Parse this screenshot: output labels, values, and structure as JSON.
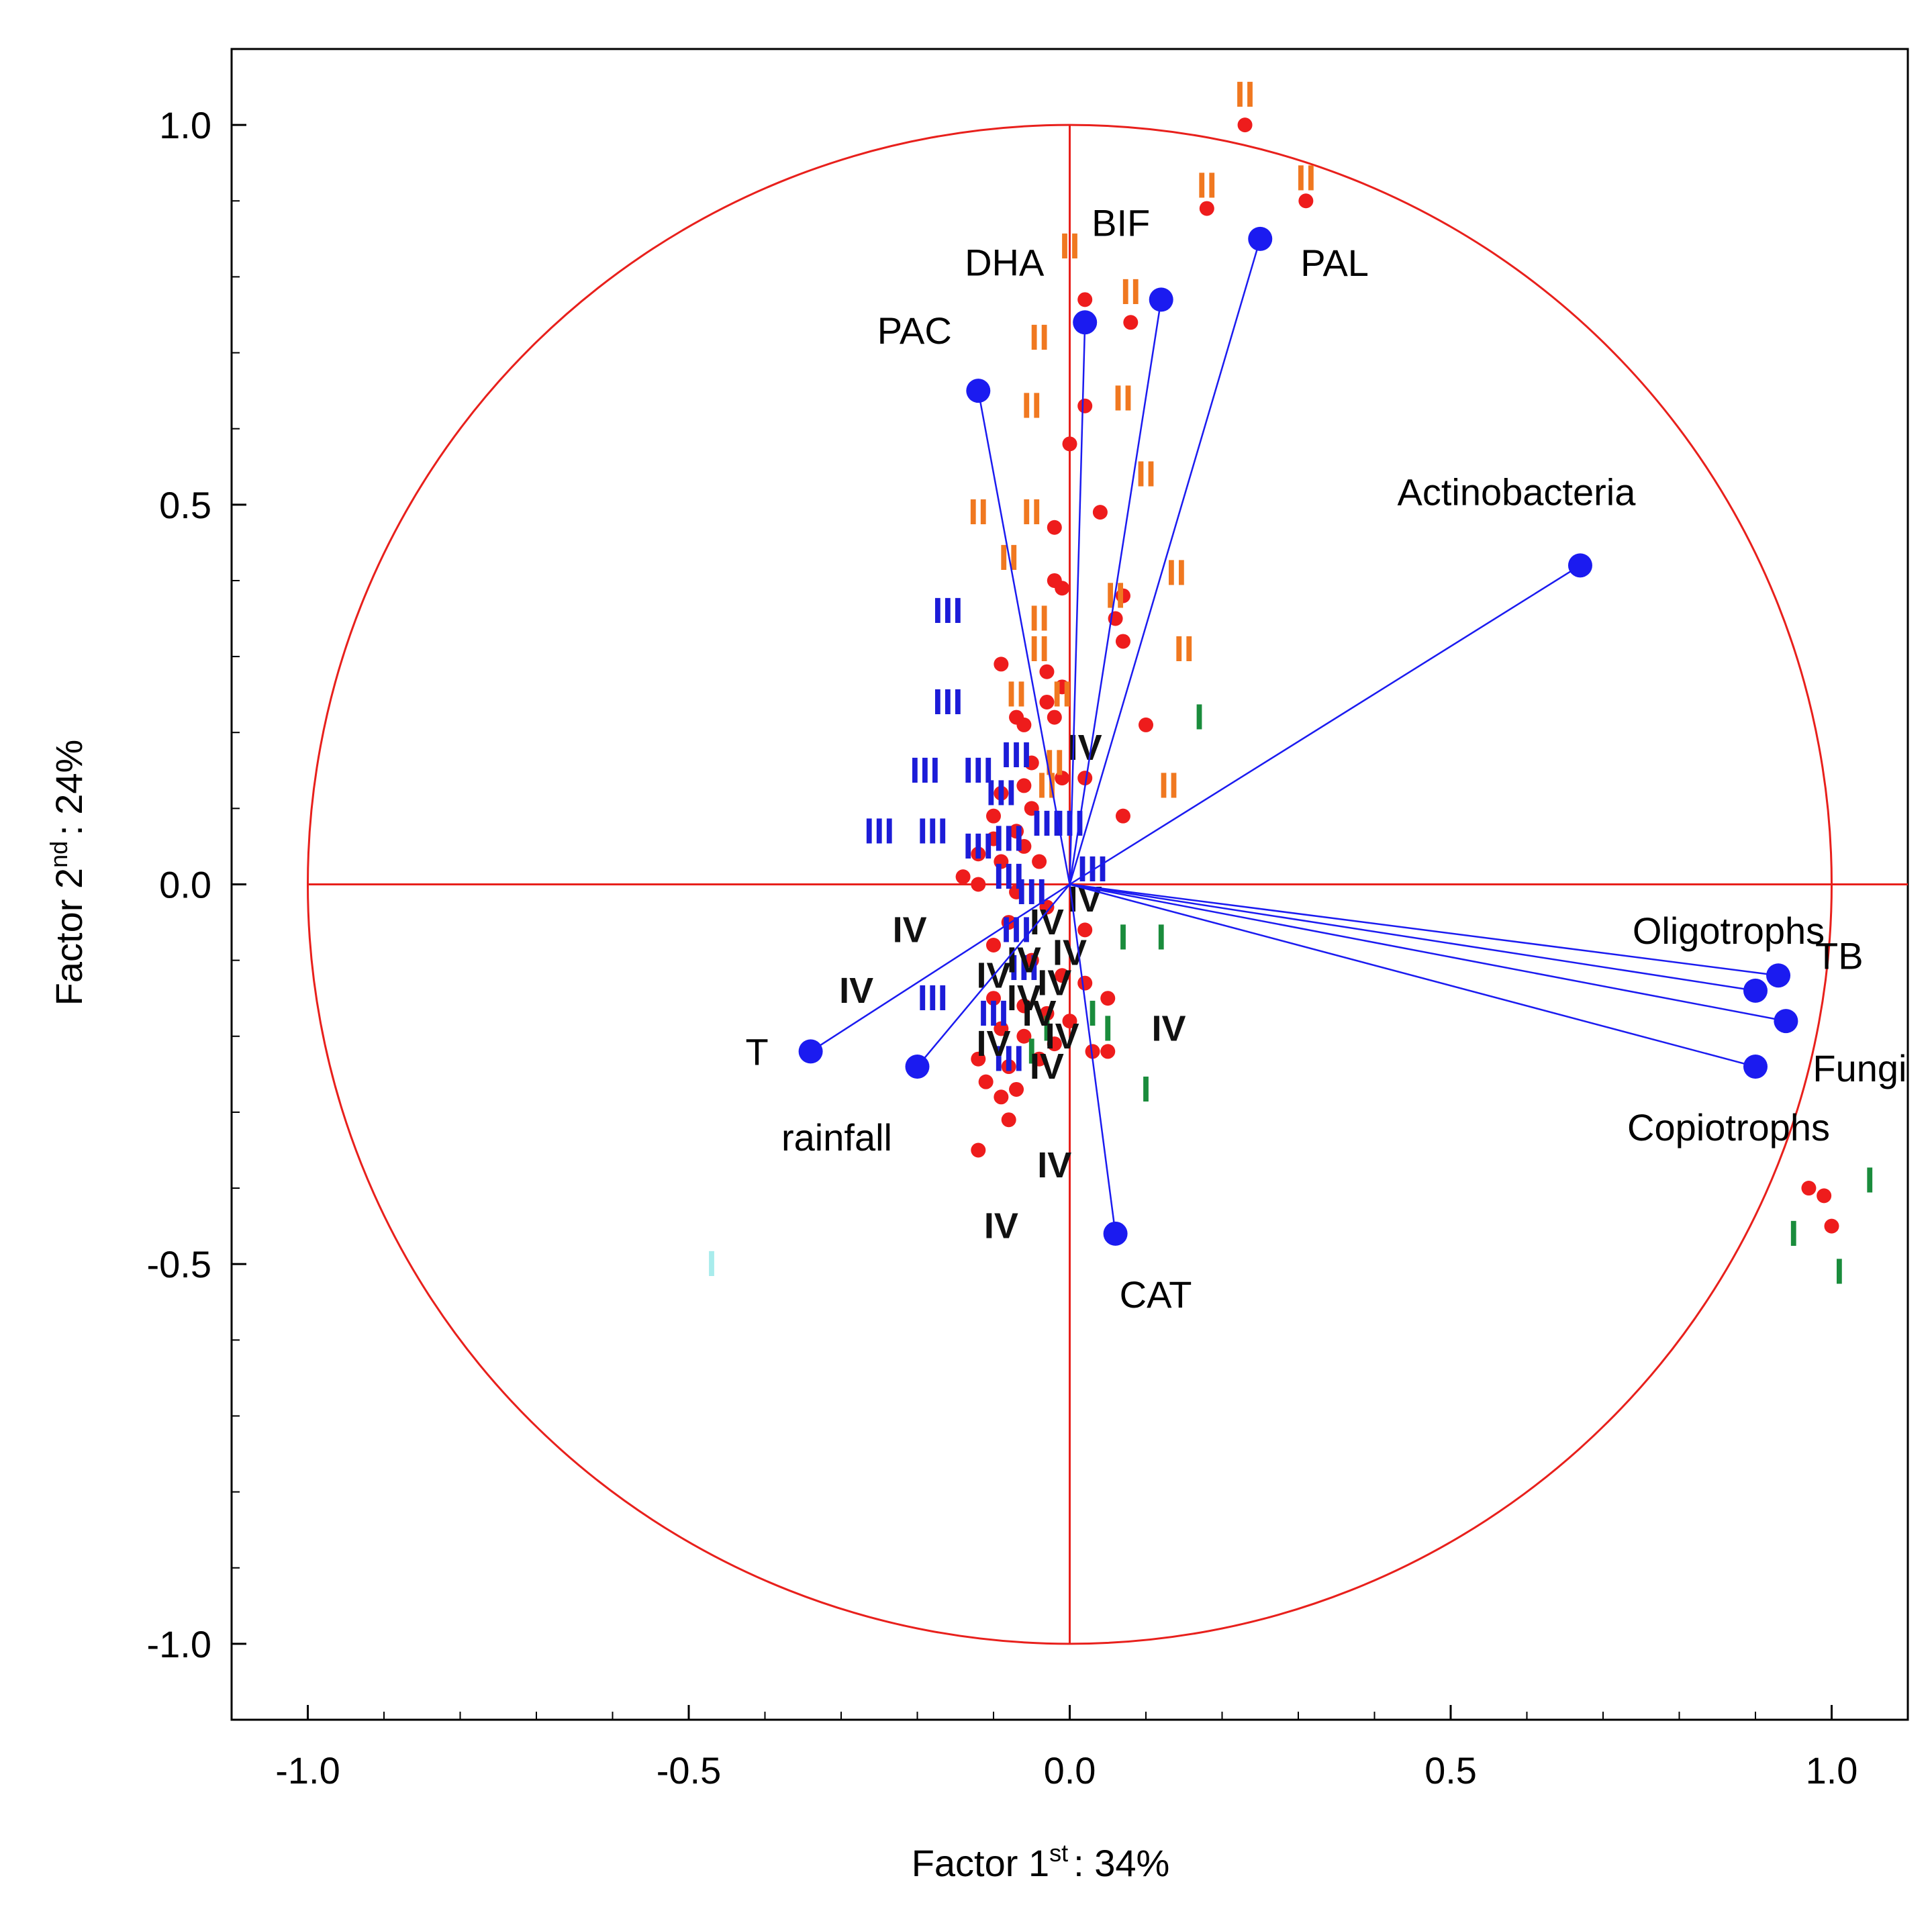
{
  "chart_data": {
    "type": "scatter",
    "title": "",
    "xlabel": "Factor 1",
    "xlabel_sup": "st",
    "xlabel_suffix": ": 34%",
    "ylabel": "Factor 2",
    "ylabel_sup": "nd",
    "ylabel_suffix": ": 24%",
    "xlim": [
      -1.1,
      1.1
    ],
    "ylim": [
      -1.1,
      1.1
    ],
    "xticks": [
      -1.0,
      -0.5,
      0.0,
      0.5,
      1.0
    ],
    "xtick_labels": [
      "-1.0",
      "-0.5",
      "0.0",
      "0.5",
      "1.0"
    ],
    "yticks": [
      1.0,
      0.5,
      0.0,
      -0.5,
      -1.0
    ],
    "ytick_labels": [
      "1.0",
      "0.5",
      "0.0",
      "-0.5",
      "-1.0"
    ],
    "grid": false,
    "unit_circle": true,
    "colors": {
      "circle": "#e8201c",
      "vector": "#1b1bf0",
      "observation": "#ee1c1c",
      "group_I": "#1a8c3c",
      "group_II": "#f07820",
      "group_III": "#1c1cd8",
      "group_IV": "#111111"
    },
    "variables": [
      {
        "name": "PAL",
        "x": 0.25,
        "y": 0.85
      },
      {
        "name": "BIF",
        "x": 0.12,
        "y": 0.77
      },
      {
        "name": "DHA",
        "x": 0.02,
        "y": 0.74
      },
      {
        "name": "PAC",
        "x": -0.12,
        "y": 0.65
      },
      {
        "name": "Actinobacteria",
        "x": 0.67,
        "y": 0.42
      },
      {
        "name": "TB",
        "x": 0.93,
        "y": -0.12
      },
      {
        "name": "Oligotrophs",
        "x": 0.9,
        "y": -0.14
      },
      {
        "name": "Fungi",
        "x": 0.94,
        "y": -0.18
      },
      {
        "name": "Copiotrophs",
        "x": 0.9,
        "y": -0.24
      },
      {
        "name": "T",
        "x": -0.34,
        "y": -0.22
      },
      {
        "name": "rainfall",
        "x": -0.2,
        "y": -0.24
      },
      {
        "name": "CAT",
        "x": 0.06,
        "y": -0.46
      }
    ],
    "observations": {
      "name": "cases",
      "points": [
        [
          0.23,
          1.0
        ],
        [
          0.31,
          0.9
        ],
        [
          0.18,
          0.89
        ],
        [
          0.02,
          0.77
        ],
        [
          0.08,
          0.74
        ],
        [
          0.02,
          0.63
        ],
        [
          0.0,
          0.58
        ],
        [
          0.04,
          0.49
        ],
        [
          -0.02,
          0.47
        ],
        [
          -0.02,
          0.4
        ],
        [
          -0.01,
          0.39
        ],
        [
          0.07,
          0.38
        ],
        [
          0.06,
          0.35
        ],
        [
          0.07,
          0.32
        ],
        [
          -0.09,
          0.29
        ],
        [
          -0.03,
          0.28
        ],
        [
          -0.01,
          0.26
        ],
        [
          -0.03,
          0.24
        ],
        [
          -0.07,
          0.22
        ],
        [
          -0.06,
          0.21
        ],
        [
          -0.02,
          0.22
        ],
        [
          0.1,
          0.21
        ],
        [
          -0.05,
          0.16
        ],
        [
          -0.01,
          0.14
        ],
        [
          0.02,
          0.14
        ],
        [
          -0.06,
          0.13
        ],
        [
          -0.09,
          0.12
        ],
        [
          -0.05,
          0.1
        ],
        [
          -0.1,
          0.09
        ],
        [
          0.07,
          0.09
        ],
        [
          -0.07,
          0.07
        ],
        [
          -0.1,
          0.06
        ],
        [
          -0.06,
          0.05
        ],
        [
          -0.12,
          0.04
        ],
        [
          -0.09,
          0.03
        ],
        [
          -0.04,
          0.03
        ],
        [
          -0.14,
          0.01
        ],
        [
          -0.12,
          0.0
        ],
        [
          -0.07,
          -0.01
        ],
        [
          -0.03,
          -0.03
        ],
        [
          -0.08,
          -0.05
        ],
        [
          -0.1,
          -0.08
        ],
        [
          -0.05,
          -0.1
        ],
        [
          -0.01,
          -0.12
        ],
        [
          0.02,
          -0.13
        ],
        [
          -0.1,
          -0.15
        ],
        [
          -0.06,
          -0.16
        ],
        [
          -0.03,
          -0.17
        ],
        [
          0.0,
          -0.18
        ],
        [
          -0.09,
          -0.19
        ],
        [
          -0.06,
          -0.2
        ],
        [
          -0.02,
          -0.21
        ],
        [
          0.05,
          -0.22
        ],
        [
          -0.12,
          -0.23
        ],
        [
          -0.08,
          -0.24
        ],
        [
          -0.04,
          -0.23
        ],
        [
          -0.11,
          -0.26
        ],
        [
          -0.07,
          -0.27
        ],
        [
          -0.09,
          -0.28
        ],
        [
          -0.08,
          -0.31
        ],
        [
          -0.12,
          -0.35
        ],
        [
          0.03,
          -0.22
        ],
        [
          0.05,
          -0.15
        ],
        [
          0.02,
          -0.06
        ],
        [
          0.97,
          -0.4
        ],
        [
          0.99,
          -0.41
        ],
        [
          1.0,
          -0.45
        ]
      ]
    },
    "groups": [
      {
        "label": "I",
        "color_key": "group_I",
        "points": [
          [
            0.17,
            0.22
          ],
          [
            0.07,
            -0.07
          ],
          [
            0.12,
            -0.07
          ],
          [
            0.05,
            -0.19
          ],
          [
            0.1,
            -0.27
          ],
          [
            1.05,
            -0.39
          ],
          [
            0.95,
            -0.46
          ],
          [
            1.01,
            -0.51
          ],
          [
            0.03,
            -0.17
          ],
          [
            -0.05,
            -0.22
          ],
          [
            -0.03,
            -0.19
          ]
        ]
      },
      {
        "label": "II",
        "color_key": "group_II",
        "points": [
          [
            0.23,
            1.04
          ],
          [
            0.31,
            0.93
          ],
          [
            0.18,
            0.92
          ],
          [
            0.0,
            0.84
          ],
          [
            0.08,
            0.78
          ],
          [
            -0.04,
            0.72
          ],
          [
            -0.05,
            0.63
          ],
          [
            0.07,
            0.64
          ],
          [
            0.1,
            0.54
          ],
          [
            -0.05,
            0.49
          ],
          [
            -0.12,
            0.49
          ],
          [
            -0.08,
            0.43
          ],
          [
            0.14,
            0.41
          ],
          [
            0.06,
            0.38
          ],
          [
            -0.04,
            0.35
          ],
          [
            -0.04,
            0.31
          ],
          [
            0.15,
            0.31
          ],
          [
            -0.07,
            0.25
          ],
          [
            -0.01,
            0.25
          ],
          [
            0.13,
            0.13
          ],
          [
            -0.02,
            0.16
          ],
          [
            -0.03,
            0.13
          ]
        ]
      },
      {
        "label": "III",
        "color_key": "group_III",
        "points": [
          [
            -0.16,
            0.36
          ],
          [
            -0.16,
            0.24
          ],
          [
            -0.19,
            0.15
          ],
          [
            -0.12,
            0.15
          ],
          [
            -0.07,
            0.17
          ],
          [
            -0.09,
            0.12
          ],
          [
            -0.25,
            0.07
          ],
          [
            -0.18,
            0.07
          ],
          [
            -0.12,
            0.05
          ],
          [
            -0.08,
            0.06
          ],
          [
            0.0,
            0.08
          ],
          [
            0.03,
            0.02
          ],
          [
            -0.08,
            0.01
          ],
          [
            -0.07,
            -0.06
          ],
          [
            -0.18,
            -0.15
          ],
          [
            -0.1,
            -0.17
          ],
          [
            -0.08,
            -0.23
          ],
          [
            -0.06,
            -0.11
          ],
          [
            -0.03,
            0.08
          ],
          [
            -0.05,
            -0.01
          ]
        ]
      },
      {
        "label": "IV",
        "color_key": "group_IV",
        "points": [
          [
            0.02,
            0.18
          ],
          [
            -0.21,
            -0.06
          ],
          [
            -0.28,
            -0.14
          ],
          [
            -0.1,
            -0.12
          ],
          [
            -0.03,
            -0.05
          ],
          [
            0.02,
            -0.02
          ],
          [
            -0.06,
            -0.1
          ],
          [
            0.0,
            -0.09
          ],
          [
            -0.04,
            -0.17
          ],
          [
            -0.02,
            -0.13
          ],
          [
            0.13,
            -0.19
          ],
          [
            -0.1,
            -0.21
          ],
          [
            -0.03,
            -0.24
          ],
          [
            -0.02,
            -0.37
          ],
          [
            -0.09,
            -0.45
          ],
          [
            -0.06,
            -0.15
          ],
          [
            -0.01,
            -0.2
          ]
        ]
      }
    ],
    "stray_marks": [
      {
        "label": "I",
        "x": -0.47,
        "y": -0.5,
        "color": "#a8ecec"
      }
    ]
  }
}
